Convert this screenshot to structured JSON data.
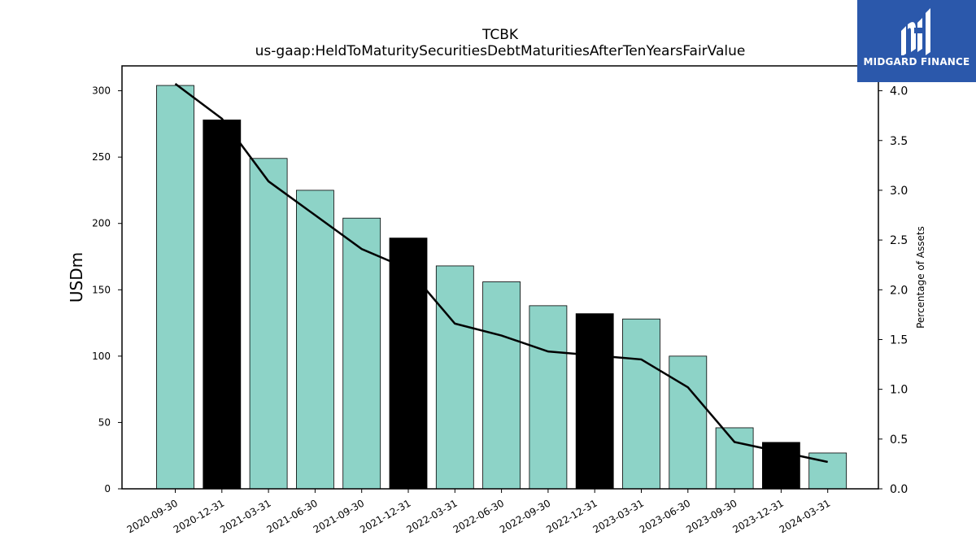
{
  "chart_data": {
    "type": "bar+line",
    "title": "TCBK",
    "subtitle": "us-gaap:HeldToMaturitySecuritiesDebtMaturitiesAfterTenYearsFairValue",
    "categories": [
      "2020-09-30",
      "2020-12-31",
      "2021-03-31",
      "2021-06-30",
      "2021-09-30",
      "2021-12-31",
      "2022-03-31",
      "2022-06-30",
      "2022-09-30",
      "2022-12-31",
      "2023-03-31",
      "2023-06-30",
      "2023-09-30",
      "2023-12-31",
      "2024-03-31"
    ],
    "series": [
      {
        "type": "bar",
        "axis": "left",
        "values": [
          304,
          278,
          249,
          225,
          204,
          189,
          168,
          156,
          138,
          132,
          128,
          100,
          46,
          35,
          27
        ],
        "colors": [
          "#8dd3c7",
          "#000000",
          "#8dd3c7",
          "#8dd3c7",
          "#8dd3c7",
          "#000000",
          "#8dd3c7",
          "#8dd3c7",
          "#8dd3c7",
          "#000000",
          "#8dd3c7",
          "#8dd3c7",
          "#8dd3c7",
          "#000000",
          "#8dd3c7"
        ]
      },
      {
        "type": "line",
        "axis": "right",
        "color": "#000000",
        "values": [
          4.07,
          3.72,
          3.09,
          2.75,
          2.41,
          2.21,
          1.66,
          1.54,
          1.38,
          1.34,
          1.3,
          1.02,
          0.47,
          0.37,
          0.27
        ]
      }
    ],
    "ylabel": "USDm",
    "ylabel_right": "Percentage of Assets",
    "ylim": [
      0,
      318.75
    ],
    "ylim_right": [
      0,
      4.25
    ],
    "yticks": [
      0,
      50,
      100,
      150,
      200,
      250,
      300
    ],
    "yticks_right": [
      "0.0",
      "0.5",
      "1.0",
      "1.5",
      "2.0",
      "2.5",
      "3.0",
      "3.5",
      "4.0"
    ],
    "grid": false
  },
  "logo": {
    "text": "MIDGARD FINANCE"
  }
}
